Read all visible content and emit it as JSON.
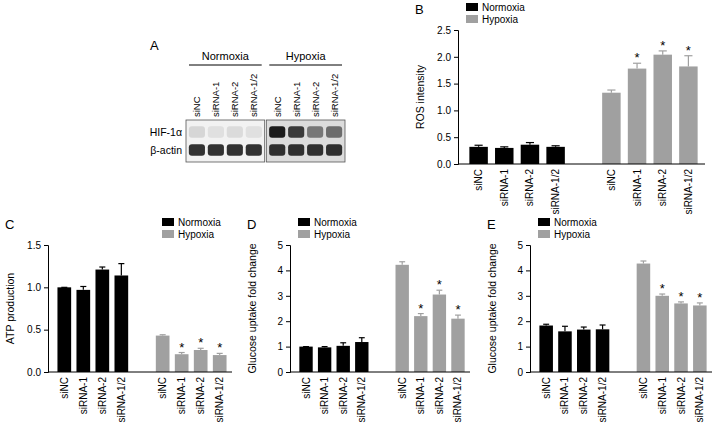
{
  "chart_data": [
    {
      "type": "blot",
      "title": "A",
      "groups": [
        {
          "name": "Normoxia",
          "lanes": [
            "siNC",
            "siRNA-1",
            "siRNA-2",
            "siRNA-1/2"
          ]
        },
        {
          "name": "Hypoxia",
          "lanes": [
            "siNC",
            "siRNA-1",
            "siRNA-2",
            "siRNA-1/2"
          ]
        }
      ],
      "rows": [
        {
          "name": "HIF-1α",
          "intensity": [
            0.12,
            0.08,
            0.1,
            0.08,
            0.95,
            0.8,
            0.5,
            0.55
          ]
        },
        {
          "name": "β-actin",
          "intensity": [
            0.85,
            0.85,
            0.85,
            0.85,
            0.85,
            0.85,
            0.85,
            0.85
          ]
        }
      ]
    },
    {
      "type": "bar",
      "title": "B",
      "y_label": "ROS intensity",
      "legend": "upper left",
      "categories": [
        "siNC",
        "siRNA-1",
        "siRNA-2",
        "siRNA-1/2"
      ],
      "series": [
        {
          "name": "Normoxia",
          "color": "#000000",
          "values": [
            0.32,
            0.3,
            0.36,
            0.32
          ],
          "errors": [
            0.03,
            0.02,
            0.04,
            0.02
          ]
        },
        {
          "name": "Hypoxia",
          "color": "#a0a0a0",
          "values": [
            1.33,
            1.78,
            2.04,
            1.82
          ],
          "errors": [
            0.05,
            0.1,
            0.07,
            0.2
          ],
          "annotations": [
            null,
            "*",
            "*",
            "*"
          ]
        }
      ],
      "ylim": [
        0,
        2.5
      ],
      "yticks": [
        {
          "value": 0,
          "label": "0.0"
        },
        {
          "value": 0.5,
          "label": "0.5"
        },
        {
          "value": 1,
          "label": "1.0"
        },
        {
          "value": 1.5,
          "label": "1.5"
        },
        {
          "value": 2,
          "label": "2.0"
        },
        {
          "value": 2.5,
          "label": "2.5"
        }
      ]
    },
    {
      "type": "bar",
      "title": "C",
      "y_label": "ATP production",
      "legend": "upper right",
      "categories": [
        "siNC",
        "siRNA-1",
        "siRNA-2",
        "siRNA-1/2"
      ],
      "series": [
        {
          "name": "Normoxia",
          "color": "#000000",
          "values": [
            1.0,
            0.97,
            1.21,
            1.14
          ],
          "errors": [
            0.0,
            0.04,
            0.03,
            0.14
          ]
        },
        {
          "name": "Hypoxia",
          "color": "#a0a0a0",
          "values": [
            0.43,
            0.21,
            0.26,
            0.2
          ],
          "errors": [
            0.01,
            0.02,
            0.02,
            0.02
          ],
          "annotations": [
            null,
            "*",
            "*",
            "*"
          ]
        }
      ],
      "ylim": [
        0,
        1.5
      ],
      "yticks": [
        {
          "value": 0,
          "label": "0.0"
        },
        {
          "value": 0.5,
          "label": "0.5"
        },
        {
          "value": 1,
          "label": "1.0"
        },
        {
          "value": 1.5,
          "label": "1.5"
        }
      ]
    },
    {
      "type": "bar",
      "title": "D",
      "y_label": "Glucose uptake fold change",
      "legend": "upper left",
      "categories": [
        "siNC",
        "siRNA-1",
        "siRNA-2",
        "siRNA-1/2"
      ],
      "series": [
        {
          "name": "Normoxia",
          "color": "#000000",
          "values": [
            1.0,
            0.97,
            1.03,
            1.18
          ],
          "errors": [
            0.0,
            0.03,
            0.12,
            0.17
          ]
        },
        {
          "name": "Hypoxia",
          "color": "#a0a0a0",
          "values": [
            4.22,
            2.2,
            3.05,
            2.1
          ],
          "errors": [
            0.12,
            0.1,
            0.17,
            0.14
          ],
          "annotations": [
            null,
            "*",
            "*",
            "*"
          ]
        }
      ],
      "ylim": [
        0,
        5
      ],
      "yticks": [
        0,
        1,
        2,
        3,
        4,
        5
      ]
    },
    {
      "type": "bar",
      "title": "E",
      "y_label": "Glucose uptake fold change",
      "legend": "upper left",
      "categories": [
        "siNC",
        "siRNA-1",
        "siRNA-2",
        "siRNA-1/2"
      ],
      "series": [
        {
          "name": "Normoxia",
          "color": "#000000",
          "values": [
            1.83,
            1.6,
            1.67,
            1.68
          ],
          "errors": [
            0.05,
            0.2,
            0.1,
            0.17
          ]
        },
        {
          "name": "Hypoxia",
          "color": "#a0a0a0",
          "values": [
            4.27,
            3.0,
            2.7,
            2.62
          ],
          "errors": [
            0.1,
            0.07,
            0.06,
            0.1
          ],
          "annotations": [
            null,
            "*",
            "*",
            "*"
          ]
        }
      ],
      "ylim": [
        0,
        5
      ],
      "yticks": [
        0,
        1,
        2,
        3,
        4,
        5
      ]
    }
  ]
}
